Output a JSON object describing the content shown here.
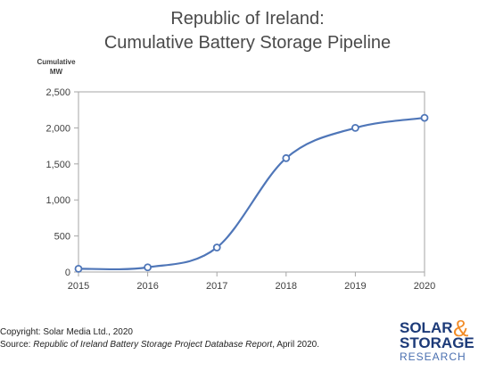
{
  "chart_data": {
    "type": "line",
    "title_line1": "Republic of Ireland:",
    "title_line2": "Cumulative Battery Storage Pipeline",
    "ylabel_line1": "Cumulative",
    "ylabel_line2": "MW",
    "xlabel": "",
    "x": [
      2015,
      2016,
      2017,
      2018,
      2019,
      2020
    ],
    "y_ticks": [
      0,
      500,
      1000,
      1500,
      2000,
      2500
    ],
    "y_tick_labels": [
      "0",
      "500",
      "1,000",
      "1,500",
      "2,000",
      "2,500"
    ],
    "ylim": [
      0,
      2500
    ],
    "series": [
      {
        "values": [
          45,
          65,
          340,
          1580,
          2000,
          2140
        ]
      }
    ],
    "grid": false,
    "line_color": "#4f76b8",
    "marker_fill": "#ffffff",
    "smooth": true
  },
  "footer": {
    "copyright": "Copyright: Solar Media Ltd., 2020",
    "source_prefix": "Source: ",
    "source_title": "Republic of Ireland Battery Storage Project Database Report",
    "source_suffix": ", April 2020."
  },
  "logo": {
    "line1": "SOLAR",
    "ampersand": "&",
    "line2": "STORAGE",
    "line3": "RESEARCH"
  }
}
